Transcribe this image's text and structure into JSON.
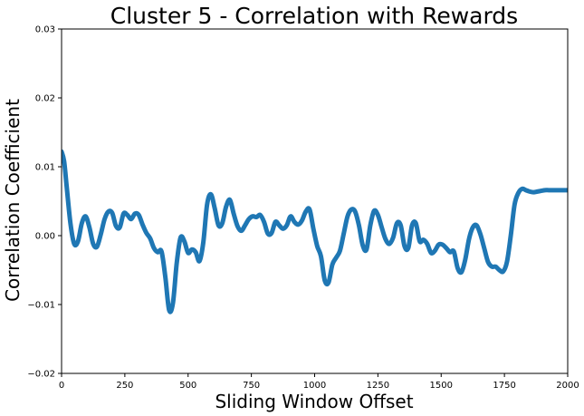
{
  "chart_data": {
    "type": "line",
    "title": "Cluster 5 - Correlation with Rewards",
    "xlabel": "Sliding Window Offset",
    "ylabel": "Correlation Coefficient",
    "xlim": [
      0,
      2000
    ],
    "ylim": [
      -0.02,
      0.03
    ],
    "xticks": [
      0,
      250,
      500,
      750,
      1000,
      1250,
      1500,
      1750,
      2000
    ],
    "xtick_labels": [
      "0",
      "250",
      "500",
      "750",
      "1000",
      "1250",
      "1500",
      "1750",
      "2000"
    ],
    "yticks": [
      -0.02,
      -0.01,
      0.0,
      0.01,
      0.02,
      0.03
    ],
    "ytick_labels": [
      "−0.02",
      "−0.01",
      "0.00",
      "0.01",
      "0.02",
      "0.03"
    ],
    "grid": false,
    "series": [
      {
        "color": "#1f77b4",
        "x": [
          0,
          10,
          20,
          35,
          50,
          65,
          80,
          95,
          110,
          125,
          140,
          155,
          170,
          185,
          200,
          215,
          230,
          245,
          260,
          275,
          290,
          305,
          320,
          335,
          350,
          365,
          380,
          395,
          410,
          425,
          440,
          455,
          470,
          485,
          500,
          515,
          530,
          545,
          560,
          575,
          590,
          605,
          620,
          635,
          650,
          665,
          680,
          695,
          710,
          725,
          740,
          755,
          770,
          785,
          800,
          815,
          830,
          845,
          860,
          875,
          890,
          905,
          920,
          935,
          950,
          965,
          980,
          995,
          1010,
          1025,
          1040,
          1055,
          1070,
          1085,
          1100,
          1115,
          1130,
          1145,
          1160,
          1175,
          1190,
          1205,
          1220,
          1235,
          1250,
          1265,
          1280,
          1295,
          1310,
          1325,
          1340,
          1355,
          1370,
          1385,
          1400,
          1415,
          1430,
          1445,
          1460,
          1475,
          1490,
          1505,
          1520,
          1535,
          1550,
          1565,
          1580,
          1595,
          1610,
          1625,
          1640,
          1655,
          1670,
          1685,
          1700,
          1715,
          1730,
          1745,
          1760,
          1775,
          1790,
          1805,
          1820,
          1835,
          1850,
          1865,
          1880,
          1895,
          1910,
          1925,
          1940,
          1955,
          1970,
          1985,
          2000
        ],
        "y": [
          0.0122,
          0.0108,
          0.0072,
          0.0018,
          -0.0012,
          -0.0008,
          0.0018,
          0.0028,
          0.0012,
          -0.0012,
          -0.0016,
          0.0002,
          0.0024,
          0.0035,
          0.0033,
          0.0014,
          0.0012,
          0.0032,
          0.003,
          0.0024,
          0.0032,
          0.003,
          0.0016,
          0.0004,
          -0.0004,
          -0.0018,
          -0.0024,
          -0.0023,
          -0.006,
          -0.0108,
          -0.0098,
          -0.004,
          -0.0003,
          -0.0008,
          -0.0025,
          -0.002,
          -0.0024,
          -0.0037,
          -0.001,
          0.0045,
          0.006,
          0.004,
          0.0015,
          0.0018,
          0.0042,
          0.0052,
          0.0032,
          0.0014,
          0.0007,
          0.0015,
          0.0024,
          0.0028,
          0.0027,
          0.003,
          0.002,
          0.0003,
          0.0004,
          0.002,
          0.0015,
          0.001,
          0.0015,
          0.0028,
          0.002,
          0.0016,
          0.0022,
          0.0035,
          0.0038,
          0.001,
          -0.0015,
          -0.003,
          -0.0065,
          -0.0068,
          -0.0042,
          -0.0032,
          -0.0022,
          0.0003,
          0.0028,
          0.0038,
          0.0035,
          0.0015,
          -0.0014,
          -0.002,
          0.0015,
          0.0036,
          0.003,
          0.0012,
          -0.0005,
          -0.0012,
          -0.0003,
          0.0018,
          0.0015,
          -0.0015,
          -0.0018,
          0.0015,
          0.0018,
          -0.0008,
          -0.0006,
          -0.0012,
          -0.0025,
          -0.0022,
          -0.0013,
          -0.0013,
          -0.0018,
          -0.0024,
          -0.0023,
          -0.0047,
          -0.0053,
          -0.0035,
          -0.0005,
          0.0012,
          0.0015,
          0.0002,
          -0.0018,
          -0.0038,
          -0.0045,
          -0.0045,
          -0.005,
          -0.0052,
          -0.0038,
          0.0,
          0.0045,
          0.0062,
          0.0068,
          0.0066,
          0.0064,
          0.0063,
          0.0064,
          0.0065,
          0.0066,
          0.0066,
          0.0066,
          0.0066,
          0.0066,
          0.0066,
          0.0066
        ]
      }
    ]
  }
}
